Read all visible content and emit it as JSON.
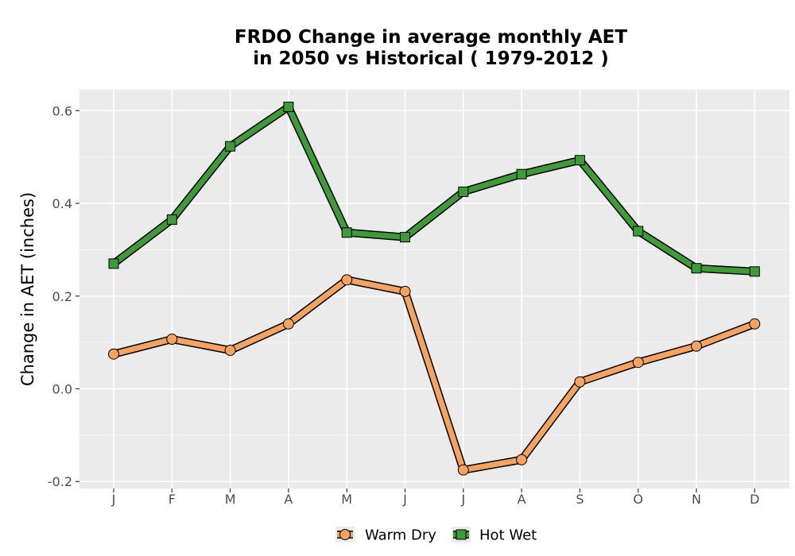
{
  "chart_data": {
    "type": "line",
    "title_lines": [
      "FRDO  Change in average monthly AET",
      "in 2050 vs Historical ( 1979-2012 )"
    ],
    "xlabel": "",
    "ylabel": "Change in AET (inches)",
    "categories": [
      "J",
      "F",
      "M",
      "A",
      "M",
      "J",
      "J",
      "A",
      "S",
      "O",
      "N",
      "D"
    ],
    "ylim": [
      -0.215,
      0.645
    ],
    "yticks": [
      -0.2,
      0.0,
      0.2,
      0.4,
      0.6
    ],
    "ytick_labels": [
      "-0.2",
      "0.0",
      "0.2",
      "0.4",
      "0.6"
    ],
    "grid": true,
    "legend_position": "bottom",
    "series": [
      {
        "name": "Warm Dry",
        "marker": "circle",
        "color": "#f4a460",
        "values": [
          0.075,
          0.107,
          0.083,
          0.14,
          0.235,
          0.21,
          -0.175,
          -0.153,
          0.015,
          0.057,
          0.092,
          0.14
        ]
      },
      {
        "name": "Hot Wet",
        "marker": "square",
        "color": "#3f9b3a",
        "values": [
          0.27,
          0.365,
          0.523,
          0.608,
          0.337,
          0.327,
          0.425,
          0.463,
          0.493,
          0.34,
          0.26,
          0.253
        ]
      }
    ]
  }
}
